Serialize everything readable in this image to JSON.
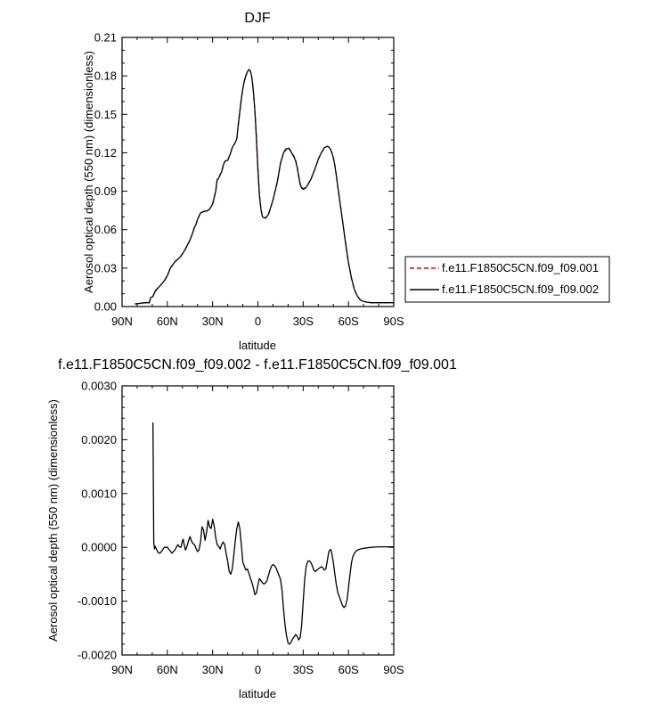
{
  "chart_data": [
    {
      "type": "line",
      "title": "DJF",
      "xlabel": "latitude",
      "ylabel": "Aerosol optical depth (550 nm) (dimensionless)",
      "xlim": [
        90,
        -90
      ],
      "ylim": [
        0,
        0.21
      ],
      "x_ticks": [
        90,
        60,
        30,
        0,
        -30,
        -60,
        -90
      ],
      "x_tick_labels": [
        "90N",
        "60N",
        "30N",
        "0",
        "30S",
        "60S",
        "90S"
      ],
      "y_ticks": [
        0,
        0.03,
        0.06,
        0.09,
        0.12,
        0.15,
        0.18,
        0.21
      ],
      "y_tick_labels": [
        "0.00",
        "0.03",
        "0.06",
        "0.09",
        "0.12",
        "0.15",
        "0.18",
        "0.21"
      ],
      "legend_position": "right",
      "series": [
        {
          "name": "f.e11.F1850C5CN.f09_f09.001",
          "color": "#e00000",
          "dash": "dashed",
          "x": [
            81.5,
            75,
            72,
            71,
            70,
            69.5,
            68,
            65,
            62,
            60,
            58,
            55,
            52,
            50,
            48,
            45,
            43,
            42,
            41,
            40,
            38,
            36,
            35,
            34,
            33,
            32,
            31,
            30,
            29,
            28,
            27,
            26,
            25,
            24,
            23,
            22,
            21,
            20,
            19,
            18,
            17,
            15,
            14,
            13,
            12,
            11,
            10,
            9,
            8,
            7,
            6,
            5,
            4,
            3,
            2,
            1,
            0,
            -1,
            -2,
            -3,
            -5,
            -7,
            -10,
            -13,
            -15,
            -17,
            -19,
            -20,
            -21,
            -22,
            -23,
            -24,
            -25,
            -26,
            -27,
            -28,
            -29,
            -30,
            -31,
            -32,
            -33,
            -34,
            -35,
            -36,
            -38,
            -40,
            -42,
            -44,
            -46,
            -47,
            -48,
            -49,
            -50,
            -51,
            -52,
            -53,
            -55,
            -58,
            -60,
            -62,
            -64,
            -66,
            -68,
            -70,
            -72,
            -75,
            -80,
            -85,
            -90
          ],
          "y": [
            0.002,
            0.003,
            0.003,
            0.007,
            0.0075,
            0.008,
            0.0125,
            0.016,
            0.02,
            0.024,
            0.03,
            0.035,
            0.038,
            0.041,
            0.045,
            0.052,
            0.058,
            0.062,
            0.064,
            0.068,
            0.073,
            0.074,
            0.0745,
            0.0745,
            0.075,
            0.076,
            0.078,
            0.08,
            0.085,
            0.09,
            0.099,
            0.1,
            0.103,
            0.105,
            0.11,
            0.113,
            0.114,
            0.114,
            0.117,
            0.12,
            0.124,
            0.128,
            0.131,
            0.142,
            0.152,
            0.162,
            0.17,
            0.176,
            0.18,
            0.183,
            0.185,
            0.184,
            0.179,
            0.168,
            0.153,
            0.132,
            0.107,
            0.087,
            0.076,
            0.07,
            0.069,
            0.072,
            0.083,
            0.098,
            0.112,
            0.12,
            0.124,
            0.124,
            0.123,
            0.121,
            0.119,
            0.117,
            0.114,
            0.109,
            0.102,
            0.096,
            0.093,
            0.092,
            0.0925,
            0.093,
            0.095,
            0.097,
            0.099,
            0.102,
            0.108,
            0.115,
            0.12,
            0.124,
            0.125,
            0.1245,
            0.123,
            0.12,
            0.116,
            0.11,
            0.102,
            0.093,
            0.076,
            0.05,
            0.034,
            0.022,
            0.013,
            0.008,
            0.005,
            0.004,
            0.0035,
            0.003,
            0.003,
            0.003,
            0.003
          ]
        },
        {
          "name": "f.e11.F1850C5CN.f09_f09.002",
          "color": "#000000",
          "dash": "solid",
          "x": [
            81.5,
            75,
            72,
            71,
            70,
            69.5,
            68,
            65,
            62,
            60,
            58,
            55,
            52,
            50,
            48,
            45,
            43,
            42,
            41,
            40,
            38,
            36,
            35,
            34,
            33,
            32,
            31,
            30,
            29,
            28,
            27,
            26,
            25,
            24,
            23,
            22,
            21,
            20,
            19,
            18,
            17,
            15,
            14,
            13,
            12,
            11,
            10,
            9,
            8,
            7,
            6,
            5,
            4,
            3,
            2,
            1,
            0,
            -1,
            -2,
            -3,
            -5,
            -7,
            -10,
            -13,
            -15,
            -17,
            -19,
            -20,
            -21,
            -22,
            -23,
            -24,
            -25,
            -26,
            -27,
            -28,
            -29,
            -30,
            -31,
            -32,
            -33,
            -34,
            -35,
            -36,
            -38,
            -40,
            -42,
            -44,
            -46,
            -47,
            -48,
            -49,
            -50,
            -51,
            -52,
            -53,
            -55,
            -58,
            -60,
            -62,
            -64,
            -66,
            -68,
            -70,
            -72,
            -75,
            -80,
            -85,
            -90
          ],
          "y": [
            0.002,
            0.003,
            0.003,
            0.007,
            0.0075,
            0.008,
            0.012,
            0.016,
            0.02,
            0.024,
            0.03,
            0.035,
            0.038,
            0.041,
            0.045,
            0.052,
            0.058,
            0.062,
            0.064,
            0.068,
            0.073,
            0.0742,
            0.0745,
            0.0745,
            0.075,
            0.076,
            0.078,
            0.08,
            0.085,
            0.09,
            0.099,
            0.1,
            0.103,
            0.105,
            0.11,
            0.113,
            0.114,
            0.114,
            0.117,
            0.12,
            0.124,
            0.128,
            0.131,
            0.142,
            0.152,
            0.162,
            0.17,
            0.176,
            0.18,
            0.183,
            0.185,
            0.184,
            0.179,
            0.168,
            0.153,
            0.132,
            0.107,
            0.087,
            0.076,
            0.07,
            0.069,
            0.072,
            0.083,
            0.098,
            0.112,
            0.12,
            0.123,
            0.1235,
            0.1225,
            0.1205,
            0.1185,
            0.1165,
            0.1135,
            0.1085,
            0.1015,
            0.0955,
            0.0925,
            0.0915,
            0.092,
            0.093,
            0.095,
            0.097,
            0.099,
            0.102,
            0.108,
            0.115,
            0.12,
            0.124,
            0.125,
            0.1245,
            0.123,
            0.12,
            0.116,
            0.11,
            0.102,
            0.093,
            0.076,
            0.05,
            0.034,
            0.022,
            0.013,
            0.008,
            0.005,
            0.004,
            0.0035,
            0.003,
            0.003,
            0.003,
            0.003
          ]
        }
      ]
    },
    {
      "type": "line",
      "title": "f.e11.F1850C5CN.f09_f09.002 - f.e11.F1850C5CN.f09_f09.001",
      "xlabel": "latitude",
      "ylabel": "Aerosol optical depth (550 nm) (dimensionless)",
      "xlim": [
        90,
        -90
      ],
      "ylim": [
        -0.002,
        0.003
      ],
      "x_ticks": [
        90,
        60,
        30,
        0,
        -30,
        -60,
        -90
      ],
      "x_tick_labels": [
        "90N",
        "60N",
        "30N",
        "0",
        "30S",
        "60S",
        "90S"
      ],
      "y_ticks": [
        -0.002,
        -0.001,
        0,
        0.001,
        0.002,
        0.003
      ],
      "y_tick_labels": [
        "-0.0020",
        "-0.0010",
        "0.0000",
        "0.0010",
        "0.0020",
        "0.0030"
      ],
      "series": [
        {
          "name": "",
          "color": "#000000",
          "dash": "solid",
          "x": [
            69.5,
            69,
            68.5,
            68,
            67,
            66,
            65,
            64,
            63,
            62,
            60,
            58,
            57,
            55,
            54,
            53,
            52,
            51,
            50,
            49.5,
            49,
            48,
            47,
            46,
            45,
            44,
            43,
            42,
            41,
            40,
            39,
            38,
            37,
            36,
            35,
            34,
            33,
            32,
            31,
            30,
            29,
            28,
            27,
            26,
            25,
            24,
            23,
            22,
            21,
            20,
            19,
            18,
            17,
            16,
            15,
            14,
            13,
            12,
            11,
            10,
            9,
            8,
            7,
            6,
            5,
            4,
            3,
            2,
            1,
            0,
            -1,
            -2,
            -3,
            -4,
            -5,
            -6,
            -7,
            -8,
            -9,
            -10,
            -11,
            -12,
            -13,
            -14,
            -15,
            -16,
            -17,
            -18,
            -19,
            -20,
            -21,
            -22,
            -23,
            -24,
            -25,
            -26,
            -27,
            -28,
            -29,
            -30,
            -31,
            -32,
            -33,
            -34,
            -35,
            -36,
            -37,
            -38,
            -40,
            -42,
            -43,
            -44,
            -45,
            -46,
            -47,
            -48,
            -48.5,
            -49,
            -50,
            -51,
            -52,
            -53,
            -54,
            -55,
            -56,
            -57,
            -58,
            -59,
            -60,
            -61,
            -62,
            -63,
            -64,
            -65,
            -66,
            -67,
            -68,
            -70,
            -72,
            -75,
            -80,
            -85,
            -90
          ],
          "y": [
            0.00232,
            0.0001,
            -3e-05,
            2e-05,
            -5e-05,
            -0.0001,
            -0.00011,
            -8e-05,
            -4e-05,
            0.0,
            0.0,
            -7e-05,
            -0.00011,
            -5e-05,
            0.0,
            5e-05,
            1e-05,
            0.0,
            0.00012,
            0.00015,
            7e-05,
            -5e-05,
            2e-05,
            0.00012,
            0.0002,
            0.00012,
            7e-05,
            5e-05,
            -2e-05,
            -8e-05,
            -5e-05,
            0.0001,
            0.00038,
            0.00032,
            0.00013,
            0.00028,
            0.0005,
            0.00038,
            0.00035,
            0.00052,
            0.0004,
            0.00018,
            5e-05,
            2e-05,
            -3e-05,
            5e-05,
            0.0001,
            5e-05,
            -0.00012,
            -0.00026,
            -0.00045,
            -0.0005,
            -0.0004,
            -0.00015,
            0.00012,
            0.00035,
            0.00047,
            0.00035,
            5e-05,
            -0.00028,
            -0.00035,
            -0.00042,
            -0.0004,
            -0.00048,
            -0.00057,
            -0.00065,
            -0.00075,
            -0.00088,
            -0.00085,
            -0.0007,
            -0.00058,
            -0.00062,
            -0.00066,
            -0.00068,
            -0.00066,
            -0.00062,
            -0.00052,
            -0.00042,
            -0.00035,
            -0.00032,
            -0.00034,
            -0.00038,
            -0.00045,
            -0.00052,
            -0.0006,
            -0.0008,
            -0.00115,
            -0.00145,
            -0.00165,
            -0.00178,
            -0.0018,
            -0.00176,
            -0.0017,
            -0.00166,
            -0.00162,
            -0.00165,
            -0.00172,
            -0.00168,
            -0.00145,
            -0.00102,
            -0.0006,
            -0.00035,
            -0.00026,
            -0.00025,
            -0.00028,
            -0.00034,
            -0.00042,
            -0.00045,
            -0.0004,
            -0.00036,
            -0.00038,
            -0.00042,
            -0.0004,
            -0.00025,
            -8e-05,
            -4e-05,
            -5e-05,
            -0.00012,
            -0.00028,
            -0.0005,
            -0.0007,
            -0.00085,
            -0.00092,
            -0.001,
            -0.00108,
            -0.00112,
            -0.00109,
            -0.00098,
            -0.00075,
            -0.0005,
            -0.00028,
            -0.00016,
            -0.00011,
            -7e-05,
            -5e-05,
            -4e-05,
            -3e-05,
            -2e-05,
            -1e-05,
            0.0,
            1e-05,
            1e-05,
            1e-05
          ]
        }
      ]
    }
  ]
}
